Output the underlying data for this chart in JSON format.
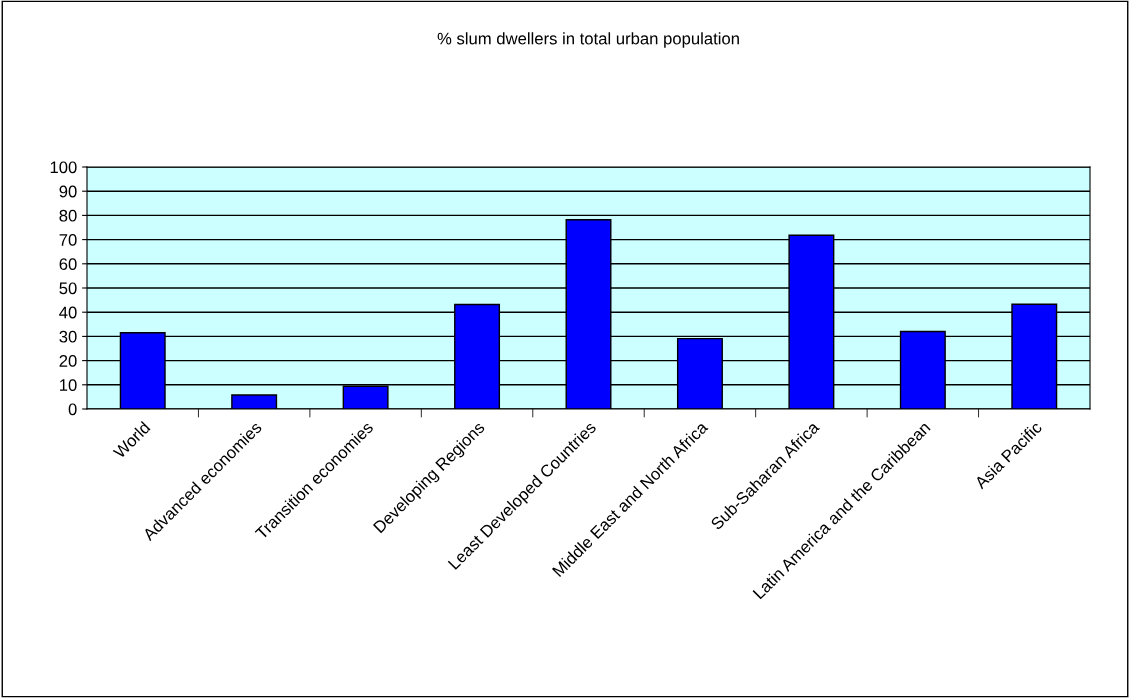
{
  "chart_data": {
    "type": "bar",
    "title": "% slum dwellers in total urban population",
    "categories": [
      "World",
      "Advanced economies",
      "Transition economies",
      "Developing Regions",
      "Least Developed Countries",
      "Middle East and North Africa",
      "Sub-Saharan Africa",
      "Latin America and the Caribbean",
      "Asia Pacific"
    ],
    "values": [
      31.5,
      5.8,
      9.4,
      43.2,
      78.2,
      29.1,
      71.8,
      32.0,
      43.3
    ],
    "color": "#0000ff",
    "ylim": [
      0,
      100
    ],
    "yticks": [
      0,
      10,
      20,
      30,
      40,
      50,
      60,
      70,
      80,
      90,
      100
    ],
    "grid": "y",
    "legend": false
  }
}
